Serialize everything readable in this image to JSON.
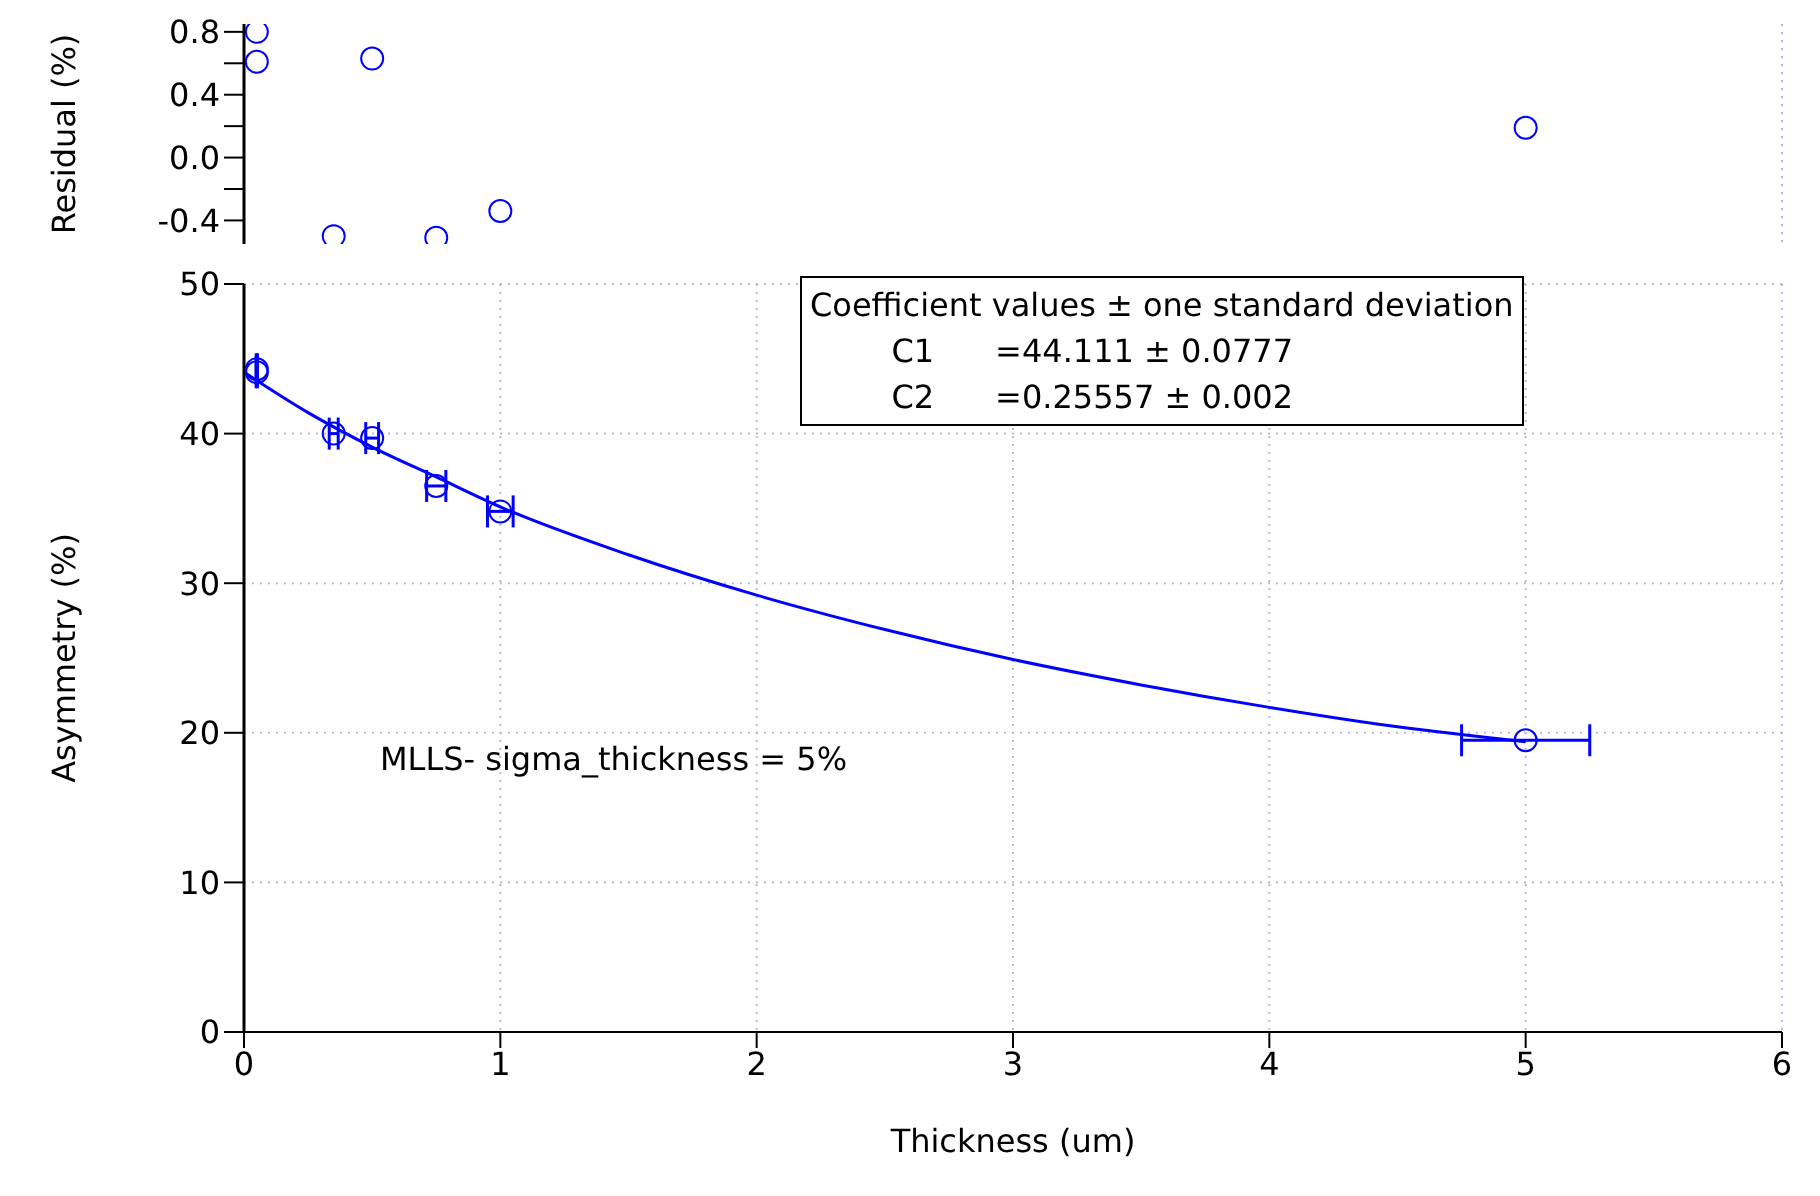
{
  "chart_data": [
    {
      "type": "scatter",
      "ylabel": "Residual (%)",
      "xlim": [
        0,
        6
      ],
      "xticks": [
        0,
        1,
        2,
        3,
        4,
        5,
        6
      ],
      "ylim": [
        -0.55,
        0.85
      ],
      "yticks": [
        -0.4,
        {
          "value": -0.2,
          "label": null
        },
        {
          "value": 0,
          "label": "0.0"
        },
        {
          "value": 0.2,
          "label": null
        },
        0.4,
        {
          "value": 0.6,
          "label": null
        },
        0.8
      ],
      "tick_labels": "y",
      "grid": "x",
      "legend": false,
      "marker": "circle",
      "series": [
        {
          "color": "#0000ff",
          "x": [
            0.05,
            0.05,
            0.35,
            0.5,
            0.75,
            1.0,
            5.0
          ],
          "values": [
            0.8,
            0.61,
            -0.5,
            0.63,
            -0.51,
            -0.34,
            0.19
          ]
        }
      ]
    },
    {
      "type": "scatter",
      "xlabel": "Thickness (um)",
      "ylabel": "Asymmetry (%)",
      "xlim": [
        0,
        6
      ],
      "xticks": [
        0,
        1,
        2,
        3,
        4,
        5,
        6
      ],
      "ylim": [
        0,
        50
      ],
      "yticks": [
        0,
        10,
        20,
        30,
        40,
        50
      ],
      "grid": true,
      "legend": false,
      "annotations": [
        "Coefficient values ± one standard deviation\n        C1      =44.111 ± 0.0777\n        C2      =0.25557 ± 0.002",
        "MLLS- sigma_thickness = 5%"
      ],
      "series": [
        {
          "marker": "circle",
          "color": "#0000ff",
          "x": [
            0.05,
            0.05,
            0.35,
            0.5,
            0.75,
            1.0,
            5.0
          ],
          "values": [
            44.3,
            44.1,
            40.0,
            39.7,
            36.5,
            34.8,
            19.5
          ],
          "xerrors": [
            0.0025,
            0.0025,
            0.0175,
            0.025,
            0.0375,
            0.05,
            0.25
          ]
        },
        {
          "type": "line",
          "marker": "none",
          "line_style": "solid",
          "color": "#0000ff",
          "x": [
            0,
            0.25,
            0.5,
            0.75,
            1,
            1.5,
            2,
            2.5,
            3,
            3.5,
            4,
            4.5,
            5
          ],
          "values": [
            44.1,
            41.4,
            39.1,
            37.1,
            35.1,
            31.9,
            29.2,
            26.9,
            24.9,
            23.2,
            21.7,
            20.4,
            19.4
          ]
        }
      ]
    }
  ]
}
